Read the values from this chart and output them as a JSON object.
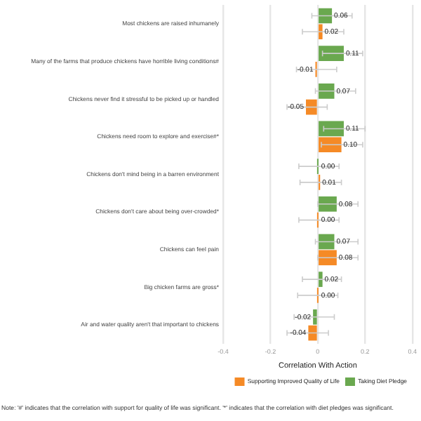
{
  "chart_data": {
    "type": "bar",
    "orientation": "horizontal",
    "xlabel": "Correlation With Action",
    "categories": [
      "Most chickens are raised inhumanely",
      "Many of the farms that produce chickens have horrible living conditions#",
      "Chickens never find it stressful to be picked up or handled",
      "Chickens need room to explore and exercise#*",
      "Chickens don't mind being in a barren environment",
      "Chickens don't care about being over-crowded*",
      "Chickens can feel pain",
      "Big chicken farms are gross*",
      "Air and water quality aren't that important to chickens"
    ],
    "series": [
      {
        "name": "Taking Diet Pledge",
        "color": "#6aa84f",
        "values": [
          0.06,
          0.11,
          0.07,
          0.11,
          0.0,
          0.08,
          0.07,
          0.02,
          -0.02
        ],
        "value_labels": [
          "0.06",
          "0.11",
          "0.07",
          "0.11",
          "0.00",
          "0.08",
          "0.07",
          "0.02",
          "-0.02"
        ],
        "errors": [
          [
            -0.025,
            0.145
          ],
          [
            0.02,
            0.19
          ],
          [
            -0.01,
            0.16
          ],
          [
            0.025,
            0.2
          ],
          [
            -0.08,
            0.09
          ],
          [
            0.0,
            0.17
          ],
          [
            -0.01,
            0.17
          ],
          [
            -0.065,
            0.1
          ],
          [
            -0.1,
            0.07
          ]
        ]
      },
      {
        "name": "Supporting Improved Quality of Life",
        "color": "#f58a26",
        "values": [
          0.02,
          -0.01,
          -0.05,
          0.1,
          0.01,
          0.0,
          0.08,
          0.0,
          -0.04
        ],
        "value_labels": [
          "0.02",
          "-0.01",
          "-0.05",
          "0.10",
          "0.01",
          "0.00",
          "0.08",
          "0.00",
          "-0.04"
        ],
        "errors": [
          [
            -0.065,
            0.11
          ],
          [
            -0.09,
            0.08
          ],
          [
            -0.13,
            0.04
          ],
          [
            0.015,
            0.19
          ],
          [
            -0.075,
            0.1
          ],
          [
            -0.08,
            0.09
          ],
          [
            0.0,
            0.17
          ],
          [
            -0.085,
            0.085
          ],
          [
            -0.13,
            0.045
          ]
        ]
      }
    ],
    "xlim": [
      -0.4,
      0.4
    ],
    "xticks": [
      -0.4,
      -0.2,
      0.0,
      0.2,
      0.4
    ],
    "grid": "x",
    "legend": "bottom right",
    "annotations": [
      "Note: '#' indicates that the correlation with support for quality of life was significant. '*' indicates that the correlation with diet pledges was significant."
    ]
  }
}
